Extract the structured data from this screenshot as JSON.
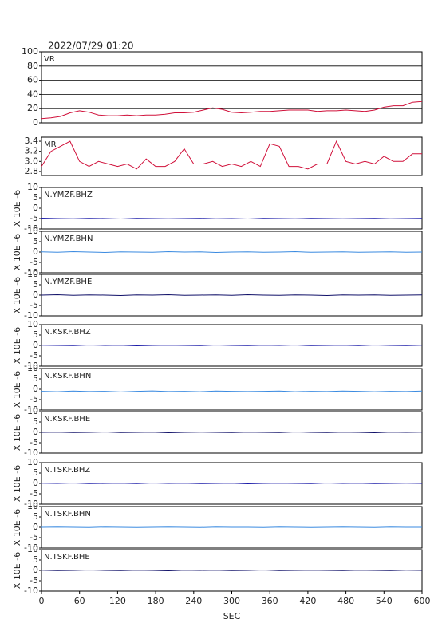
{
  "chart_data": [
    {
      "type": "line",
      "title": "2022/07/29 01:20",
      "label": "VR",
      "color": "#d0103a",
      "grid": true,
      "x": [
        0,
        15,
        30,
        45,
        60,
        75,
        90,
        105,
        120,
        135,
        150,
        165,
        180,
        195,
        210,
        225,
        240,
        255,
        270,
        285,
        300,
        315,
        330,
        345,
        360,
        375,
        390,
        405,
        420,
        435,
        450,
        465,
        480,
        495,
        510,
        525,
        540,
        555,
        570,
        585,
        600
      ],
      "values": [
        6,
        7,
        9,
        14,
        17,
        15,
        11,
        10,
        10,
        11,
        10,
        11,
        11,
        12,
        14,
        14,
        15,
        18,
        21,
        19,
        15,
        14,
        15,
        16,
        16,
        17,
        18,
        18,
        18,
        16,
        17,
        17,
        18,
        17,
        16,
        18,
        22,
        24,
        24,
        29,
        30
      ],
      "xlim": [
        0,
        600
      ],
      "ylim": [
        0,
        100
      ],
      "yticks": [
        0,
        20,
        40,
        60,
        80,
        100
      ]
    },
    {
      "type": "line",
      "label": "MR",
      "color": "#d0103a",
      "grid": false,
      "x": [
        0,
        15,
        30,
        45,
        60,
        75,
        90,
        105,
        120,
        135,
        150,
        165,
        180,
        195,
        210,
        225,
        240,
        255,
        270,
        285,
        300,
        315,
        330,
        345,
        360,
        375,
        390,
        405,
        420,
        435,
        450,
        465,
        480,
        495,
        510,
        525,
        540,
        555,
        570,
        585,
        600
      ],
      "values": [
        2.9,
        3.2,
        3.3,
        3.4,
        3.0,
        2.9,
        3.0,
        2.95,
        2.9,
        2.95,
        2.85,
        3.05,
        2.9,
        2.9,
        3.0,
        3.25,
        2.95,
        2.95,
        3.0,
        2.9,
        2.95,
        2.9,
        3.0,
        2.9,
        3.35,
        3.3,
        2.9,
        2.9,
        2.85,
        2.95,
        2.95,
        3.4,
        3.0,
        2.95,
        3.0,
        2.95,
        3.1,
        3.0,
        3.0,
        3.15,
        3.15
      ],
      "xlim": [
        0,
        600
      ],
      "ylim": [
        2.72,
        3.48
      ],
      "yticks": [
        {
          "value": 2.8,
          "label": "2.8"
        },
        {
          "value": 3.0,
          "label": "3.0"
        },
        {
          "value": 3.2,
          "label": "3.2"
        },
        {
          "value": 3.4,
          "label": "3.4"
        }
      ]
    },
    {
      "type": "line",
      "label": "N.YMZF.BHZ",
      "ylabel": "X 10E -6",
      "color": "#1a1aa8",
      "x": [
        0,
        25,
        50,
        75,
        100,
        125,
        150,
        175,
        200,
        225,
        250,
        275,
        300,
        325,
        350,
        375,
        400,
        425,
        450,
        475,
        500,
        525,
        550,
        575,
        600
      ],
      "values": [
        -4.8,
        -5.0,
        -5.1,
        -4.9,
        -5.0,
        -5.2,
        -4.9,
        -5.0,
        -5.1,
        -5.0,
        -4.9,
        -5.1,
        -5.0,
        -5.2,
        -4.9,
        -5.0,
        -5.1,
        -4.9,
        -5.0,
        -5.1,
        -5.0,
        -4.9,
        -5.1,
        -5.0,
        -4.9
      ],
      "xlim": [
        0,
        600
      ],
      "ylim": [
        -10,
        10
      ],
      "yticks": [
        -10,
        -5,
        0,
        5,
        10
      ]
    },
    {
      "type": "line",
      "label": "N.YMZF.BHN",
      "ylabel": "X 10E -6",
      "color": "#3a8ae0",
      "x": [
        0,
        25,
        50,
        75,
        100,
        125,
        150,
        175,
        200,
        225,
        250,
        275,
        300,
        325,
        350,
        375,
        400,
        425,
        450,
        475,
        500,
        525,
        550,
        575,
        600
      ],
      "values": [
        0.1,
        -0.1,
        0.2,
        0,
        -0.2,
        0.1,
        0,
        -0.1,
        0.2,
        0,
        0.1,
        -0.2,
        0,
        0.1,
        -0.1,
        0,
        0.2,
        -0.1,
        0,
        0.1,
        -0.1,
        0,
        0.1,
        -0.1,
        0
      ],
      "xlim": [
        0,
        600
      ],
      "ylim": [
        -10,
        10
      ],
      "yticks": [
        -10,
        -5,
        0,
        5,
        10
      ]
    },
    {
      "type": "line",
      "label": "N.YMZF.BHE",
      "ylabel": "X 10E -6",
      "color": "#101068",
      "x": [
        0,
        25,
        50,
        75,
        100,
        125,
        150,
        175,
        200,
        225,
        250,
        275,
        300,
        325,
        350,
        375,
        400,
        425,
        450,
        475,
        500,
        525,
        550,
        575,
        600
      ],
      "values": [
        0,
        0.2,
        -0.1,
        0.1,
        0,
        -0.2,
        0.1,
        0,
        0.2,
        -0.1,
        0,
        0.1,
        -0.1,
        0.2,
        0,
        -0.1,
        0.1,
        0,
        -0.2,
        0.1,
        0,
        0.1,
        -0.1,
        0,
        0.1
      ],
      "xlim": [
        0,
        600
      ],
      "ylim": [
        -10,
        10
      ],
      "yticks": [
        -10,
        -5,
        0,
        5,
        10
      ]
    },
    {
      "type": "line",
      "label": "N.KSKF.BHZ",
      "ylabel": "X 10E -6",
      "color": "#1a1aa8",
      "x": [
        0,
        25,
        50,
        75,
        100,
        125,
        150,
        175,
        200,
        225,
        250,
        275,
        300,
        325,
        350,
        375,
        400,
        425,
        450,
        475,
        500,
        525,
        550,
        575,
        600
      ],
      "values": [
        0.1,
        0,
        -0.1,
        0.2,
        0,
        0.1,
        -0.2,
        0,
        0.1,
        0,
        -0.1,
        0.2,
        0,
        -0.1,
        0.1,
        0,
        0.2,
        -0.1,
        0,
        0.1,
        -0.1,
        0.2,
        0,
        -0.1,
        0.1
      ],
      "xlim": [
        0,
        600
      ],
      "ylim": [
        -10,
        10
      ],
      "yticks": [
        -10,
        -5,
        0,
        5,
        10
      ]
    },
    {
      "type": "line",
      "label": "N.KSKF.BHN",
      "ylabel": "X 10E -6",
      "color": "#3a8ae0",
      "x": [
        0,
        25,
        50,
        75,
        100,
        125,
        150,
        175,
        200,
        225,
        250,
        275,
        300,
        325,
        350,
        375,
        400,
        425,
        450,
        475,
        500,
        525,
        550,
        575,
        600
      ],
      "values": [
        -1.0,
        -1.2,
        -0.9,
        -1.1,
        -1.0,
        -1.3,
        -1.0,
        -0.8,
        -1.1,
        -1.0,
        -1.2,
        -0.9,
        -1.0,
        -1.1,
        -1.0,
        -0.9,
        -1.2,
        -1.0,
        -1.1,
        -0.9,
        -1.0,
        -1.2,
        -1.0,
        -1.1,
        -0.9
      ],
      "xlim": [
        0,
        600
      ],
      "ylim": [
        -10,
        10
      ],
      "yticks": [
        -10,
        -5,
        0,
        5,
        10
      ]
    },
    {
      "type": "line",
      "label": "N.KSKF.BHE",
      "ylabel": "X 10E -6",
      "color": "#101068",
      "x": [
        0,
        25,
        50,
        75,
        100,
        125,
        150,
        175,
        200,
        225,
        250,
        275,
        300,
        325,
        350,
        375,
        400,
        425,
        450,
        475,
        500,
        525,
        550,
        575,
        600
      ],
      "values": [
        0,
        0.1,
        -0.1,
        0,
        0.2,
        -0.1,
        0,
        0.1,
        -0.2,
        0,
        0.1,
        0,
        -0.1,
        0.1,
        0,
        -0.1,
        0.2,
        0,
        -0.1,
        0.1,
        0,
        -0.2,
        0.1,
        0,
        0.1
      ],
      "xlim": [
        0,
        600
      ],
      "ylim": [
        -10,
        10
      ],
      "yticks": [
        -10,
        -5,
        0,
        5,
        10
      ]
    },
    {
      "type": "line",
      "label": "N.TSKF.BHZ",
      "ylabel": "X 10E -6",
      "color": "#1a1aa8",
      "x": [
        0,
        25,
        50,
        75,
        100,
        125,
        150,
        175,
        200,
        225,
        250,
        275,
        300,
        325,
        350,
        375,
        400,
        425,
        450,
        475,
        500,
        525,
        550,
        575,
        600
      ],
      "values": [
        0.1,
        0,
        0.2,
        -0.1,
        0,
        0.1,
        -0.1,
        0.2,
        0,
        0.1,
        -0.1,
        0,
        0.1,
        -0.2,
        0,
        0.1,
        0,
        -0.1,
        0.2,
        0,
        0.1,
        -0.1,
        0,
        0.1,
        0
      ],
      "xlim": [
        0,
        600
      ],
      "ylim": [
        -10,
        10
      ],
      "yticks": [
        -10,
        -5,
        0,
        5,
        10
      ]
    },
    {
      "type": "line",
      "label": "N.TSKF.BHN",
      "ylabel": "X 10E -6",
      "color": "#3a8ae0",
      "x": [
        0,
        25,
        50,
        75,
        100,
        125,
        150,
        175,
        200,
        225,
        250,
        275,
        300,
        325,
        350,
        375,
        400,
        425,
        450,
        475,
        500,
        525,
        550,
        575,
        600
      ],
      "values": [
        0,
        0.1,
        0,
        -0.1,
        0.1,
        0,
        -0.1,
        0,
        0.1,
        0,
        -0.1,
        0.1,
        0,
        0,
        -0.1,
        0.1,
        0,
        -0.1,
        0,
        0.1,
        0,
        -0.1,
        0.1,
        0,
        0
      ],
      "xlim": [
        0,
        600
      ],
      "ylim": [
        -10,
        10
      ],
      "yticks": [
        -10,
        -5,
        0,
        5,
        10
      ]
    },
    {
      "type": "line",
      "label": "N.TSKF.BHE",
      "ylabel": "X 10E -6",
      "color": "#101068",
      "xlabel": "SEC",
      "x": [
        0,
        25,
        50,
        75,
        100,
        125,
        150,
        175,
        200,
        225,
        250,
        275,
        300,
        325,
        350,
        375,
        400,
        425,
        450,
        475,
        500,
        525,
        550,
        575,
        600
      ],
      "values": [
        0.1,
        -0.1,
        0,
        0.2,
        0,
        -0.1,
        0.1,
        0,
        -0.2,
        0.1,
        0,
        0.1,
        -0.1,
        0,
        0.2,
        -0.1,
        0,
        0.1,
        0,
        -0.1,
        0.1,
        0,
        -0.1,
        0.1,
        0
      ],
      "xlim": [
        0,
        600
      ],
      "ylim": [
        -10,
        10
      ],
      "yticks": [
        -10,
        -5,
        0,
        5,
        10
      ],
      "xticks": [
        0,
        60,
        120,
        180,
        240,
        300,
        360,
        420,
        480,
        540,
        600
      ]
    }
  ]
}
